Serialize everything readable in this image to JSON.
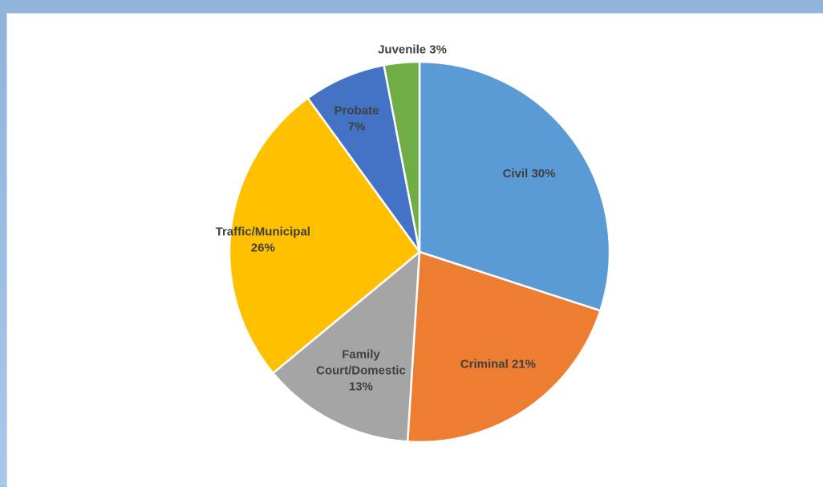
{
  "chart_data": {
    "type": "pie",
    "title": "",
    "start_angle_deg": 0,
    "direction": "clockwise",
    "slices": [
      {
        "name": "Civil",
        "value": 30,
        "color": "#5b9bd5",
        "label_lines": [
          "Civil 30%"
        ]
      },
      {
        "name": "Criminal",
        "value": 21,
        "color": "#ed7d31",
        "label_lines": [
          "Criminal 21%"
        ]
      },
      {
        "name": "Family Court/Domestic",
        "value": 13,
        "color": "#a5a5a5",
        "label_lines": [
          "Family",
          "Court/Domestic",
          "13%"
        ]
      },
      {
        "name": "Traffic/Municipal",
        "value": 26,
        "color": "#ffc000",
        "label_lines": [
          "Traffic/Municipal",
          "26%"
        ]
      },
      {
        "name": "Probate",
        "value": 7,
        "color": "#4472c4",
        "label_lines": [
          "Probate",
          "7%"
        ]
      },
      {
        "name": "Juvenile",
        "value": 3,
        "color": "#70ad47",
        "label_lines": [
          "Juvenile 3%"
        ]
      }
    ],
    "legend": "none",
    "data_labels": "category and percentage"
  }
}
